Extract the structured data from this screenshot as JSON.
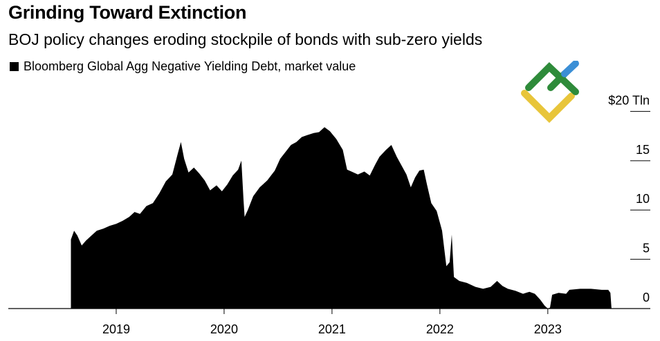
{
  "header": {
    "title": "Grinding Toward Extinction",
    "subtitle": "BOJ policy changes eroding stockpile of bonds with sub-zero yields"
  },
  "legend": {
    "label": "Bloomberg Global Agg Negative Yielding Debt, market value",
    "color": "#000000"
  },
  "logo": {
    "name": "brand-logo-icon",
    "colors": [
      "#2e8b3a",
      "#3b8fd6",
      "#e8c53a"
    ]
  },
  "chart_data": {
    "type": "area",
    "title": "Grinding Toward Extinction",
    "subtitle": "BOJ policy changes eroding stockpile of bonds with sub-zero yields",
    "series": [
      {
        "name": "Bloomberg Global Agg Negative Yielding Debt, market value",
        "unit": "$ Tln",
        "points": [
          [
            2018.58,
            7.0
          ],
          [
            2018.61,
            7.9
          ],
          [
            2018.64,
            7.4
          ],
          [
            2018.68,
            6.4
          ],
          [
            2018.72,
            6.9
          ],
          [
            2018.76,
            7.3
          ],
          [
            2018.82,
            7.9
          ],
          [
            2018.88,
            8.1
          ],
          [
            2018.94,
            8.4
          ],
          [
            2019.0,
            8.6
          ],
          [
            2019.06,
            8.9
          ],
          [
            2019.12,
            9.3
          ],
          [
            2019.17,
            9.8
          ],
          [
            2019.22,
            9.6
          ],
          [
            2019.28,
            10.4
          ],
          [
            2019.34,
            10.7
          ],
          [
            2019.4,
            11.7
          ],
          [
            2019.46,
            12.9
          ],
          [
            2019.52,
            13.6
          ],
          [
            2019.57,
            15.7
          ],
          [
            2019.6,
            16.9
          ],
          [
            2019.63,
            15.2
          ],
          [
            2019.67,
            13.8
          ],
          [
            2019.72,
            14.3
          ],
          [
            2019.77,
            13.7
          ],
          [
            2019.82,
            13.0
          ],
          [
            2019.87,
            12.0
          ],
          [
            2019.93,
            12.5
          ],
          [
            2019.98,
            11.9
          ],
          [
            2020.03,
            12.6
          ],
          [
            2020.08,
            13.5
          ],
          [
            2020.13,
            14.1
          ],
          [
            2020.16,
            15.0
          ],
          [
            2020.18,
            11.0
          ],
          [
            2020.19,
            9.3
          ],
          [
            2020.22,
            10.0
          ],
          [
            2020.27,
            11.4
          ],
          [
            2020.33,
            12.3
          ],
          [
            2020.4,
            13.0
          ],
          [
            2020.47,
            14.0
          ],
          [
            2020.52,
            15.2
          ],
          [
            2020.57,
            15.9
          ],
          [
            2020.62,
            16.6
          ],
          [
            2020.67,
            16.9
          ],
          [
            2020.72,
            17.4
          ],
          [
            2020.77,
            17.6
          ],
          [
            2020.83,
            17.8
          ],
          [
            2020.88,
            17.9
          ],
          [
            2020.93,
            18.4
          ],
          [
            2020.98,
            18.0
          ],
          [
            2021.04,
            17.2
          ],
          [
            2021.1,
            16.1
          ],
          [
            2021.14,
            14.1
          ],
          [
            2021.18,
            13.9
          ],
          [
            2021.24,
            13.6
          ],
          [
            2021.3,
            13.9
          ],
          [
            2021.35,
            13.5
          ],
          [
            2021.4,
            14.6
          ],
          [
            2021.44,
            15.4
          ],
          [
            2021.5,
            16.1
          ],
          [
            2021.55,
            16.6
          ],
          [
            2021.6,
            15.4
          ],
          [
            2021.65,
            14.4
          ],
          [
            2021.69,
            13.6
          ],
          [
            2021.73,
            12.3
          ],
          [
            2021.77,
            13.3
          ],
          [
            2021.81,
            14.0
          ],
          [
            2021.85,
            14.1
          ],
          [
            2021.88,
            12.6
          ],
          [
            2021.92,
            10.7
          ],
          [
            2021.97,
            9.9
          ],
          [
            2022.02,
            7.9
          ],
          [
            2022.06,
            4.3
          ],
          [
            2022.09,
            4.7
          ],
          [
            2022.11,
            7.5
          ],
          [
            2022.13,
            3.2
          ],
          [
            2022.18,
            2.8
          ],
          [
            2022.25,
            2.6
          ],
          [
            2022.33,
            2.2
          ],
          [
            2022.4,
            2.0
          ],
          [
            2022.47,
            2.2
          ],
          [
            2022.53,
            2.8
          ],
          [
            2022.58,
            2.3
          ],
          [
            2022.63,
            2.0
          ],
          [
            2022.7,
            1.8
          ],
          [
            2022.77,
            1.5
          ],
          [
            2022.83,
            1.7
          ],
          [
            2022.88,
            1.5
          ],
          [
            2022.93,
            0.9
          ],
          [
            2022.97,
            0.3
          ],
          [
            2023.0,
            0.0
          ],
          [
            2023.02,
            0.1
          ],
          [
            2023.04,
            1.4
          ],
          [
            2023.1,
            1.6
          ],
          [
            2023.17,
            1.5
          ],
          [
            2023.2,
            1.9
          ],
          [
            2023.3,
            2.0
          ],
          [
            2023.4,
            2.0
          ],
          [
            2023.5,
            1.9
          ],
          [
            2023.56,
            1.9
          ],
          [
            2023.58,
            1.6
          ],
          [
            2023.59,
            0.0
          ]
        ]
      }
    ],
    "xlim": [
      2018.0,
      2023.95
    ],
    "ylim": [
      0,
      21.5
    ],
    "x_ticks": [
      {
        "value": 2019,
        "label": "2019"
      },
      {
        "value": 2020,
        "label": "2020"
      },
      {
        "value": 2021,
        "label": "2021"
      },
      {
        "value": 2022,
        "label": "2022"
      },
      {
        "value": 2023,
        "label": "2023"
      }
    ],
    "y_ticks": [
      {
        "value": 0,
        "label": "0"
      },
      {
        "value": 5,
        "label": "5"
      },
      {
        "value": 10,
        "label": "10"
      },
      {
        "value": 15,
        "label": "15"
      },
      {
        "value": 20,
        "label": "$20 Tln"
      }
    ],
    "xlabel": "",
    "ylabel": "",
    "grid": false,
    "legend_position": "top-left",
    "y_axis_position": "right"
  }
}
